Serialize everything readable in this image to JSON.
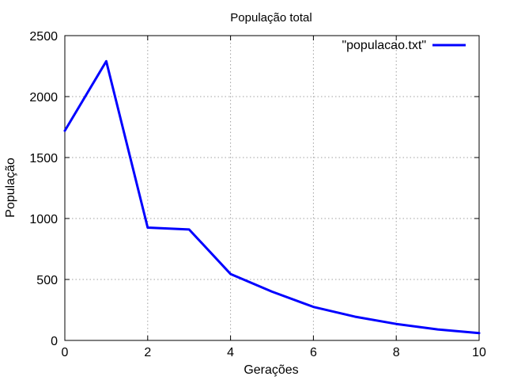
{
  "chart_data": {
    "type": "line",
    "title": "População total",
    "xlabel": "Gerações",
    "ylabel": "População",
    "x": [
      0,
      1,
      2,
      3,
      4,
      5,
      6,
      7,
      8,
      9,
      10
    ],
    "xlim": [
      0,
      10
    ],
    "ylim": [
      0,
      2500
    ],
    "xticks": [
      0,
      2,
      4,
      6,
      8,
      10
    ],
    "yticks": [
      0,
      500,
      1000,
      1500,
      2000,
      2500
    ],
    "grid": true,
    "legend_position": "top-right",
    "series": [
      {
        "name": "\"populacao.txt\"",
        "color": "#0000ff",
        "values": [
          1720,
          2290,
          925,
          910,
          545,
          400,
          275,
          195,
          135,
          90,
          60
        ]
      }
    ]
  }
}
